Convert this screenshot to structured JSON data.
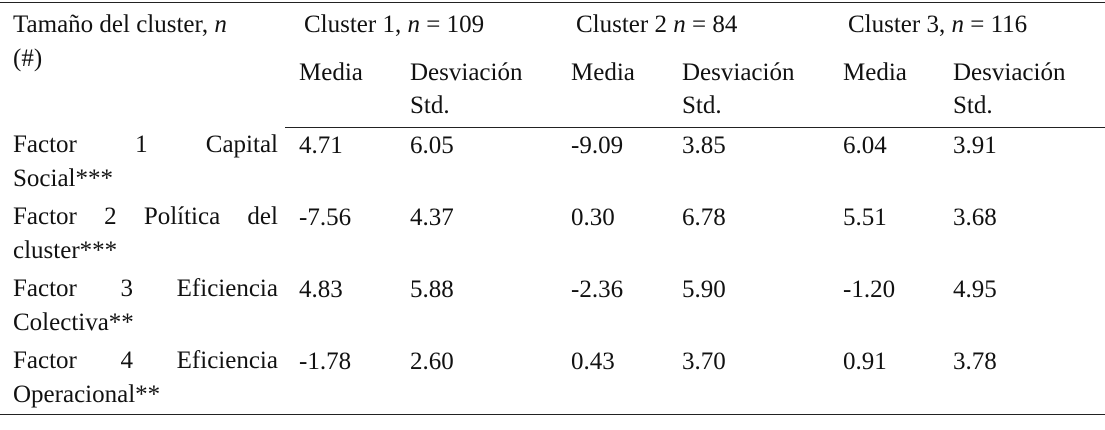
{
  "header": {
    "row_label_line1": "Tamaño del cluster,",
    "row_label_n": "n",
    "row_label_line2": "(#)",
    "clusters": [
      {
        "name": "Cluster 1,",
        "n_var": "n",
        "n_eq": "= 109"
      },
      {
        "name": "Cluster 2",
        "n_var": "n",
        "n_eq": "= 84"
      },
      {
        "name": "Cluster 3,",
        "n_var": "n",
        "n_eq": "= 116"
      }
    ],
    "sub_media": "Media",
    "sub_sd_line1": "Desviación",
    "sub_sd_line2": "Std."
  },
  "rows": [
    {
      "label_words": [
        "Factor",
        "1",
        "Capital"
      ],
      "label_line2": "Social***",
      "values": [
        "4.71",
        "6.05",
        "-9.09",
        "3.85",
        "6.04",
        "3.91"
      ]
    },
    {
      "label_words": [
        "Factor",
        "2",
        "Política",
        "del"
      ],
      "label_line2": "cluster***",
      "values": [
        "-7.56",
        "4.37",
        "0.30",
        "6.78",
        "5.51",
        "3.68"
      ]
    },
    {
      "label_words": [
        "Factor",
        "3",
        "Eficiencia"
      ],
      "label_line2": "Colectiva**",
      "values": [
        "4.83",
        "5.88",
        "-2.36",
        "5.90",
        "-1.20",
        "4.95"
      ]
    },
    {
      "label_words": [
        "Factor",
        "4",
        "Eficiencia"
      ],
      "label_line2": "Operacional**",
      "values": [
        "-1.78",
        "2.60",
        "0.43",
        "3.70",
        "0.91",
        "3.78"
      ]
    }
  ]
}
